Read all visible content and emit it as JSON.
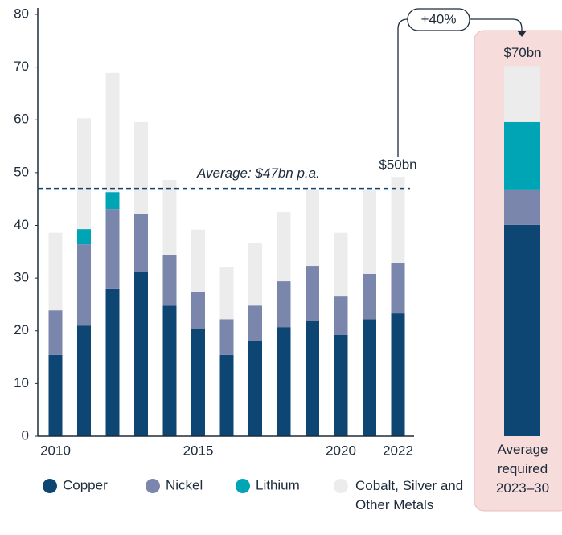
{
  "chart_data": [
    {
      "type": "bar",
      "stacked": true,
      "categories": [
        "2010",
        null,
        null,
        null,
        null,
        "2015",
        null,
        null,
        null,
        null,
        "2020",
        null,
        "2022"
      ],
      "series": [
        {
          "name": "Copper",
          "color": "#0d4673",
          "values": [
            15.4,
            21.0,
            27.9,
            31.2,
            24.8,
            20.3,
            15.4,
            18.0,
            20.7,
            21.8,
            19.2,
            22.2,
            23.3
          ]
        },
        {
          "name": "Nickel",
          "color": "#7b86ad",
          "values": [
            8.5,
            15.4,
            15.2,
            11.0,
            9.5,
            7.1,
            6.8,
            6.8,
            8.7,
            10.5,
            7.3,
            8.6,
            9.5
          ]
        },
        {
          "name": "Lithium",
          "color": "#00a5b5",
          "values": [
            0,
            2.9,
            3.2,
            0,
            0,
            0,
            0,
            0,
            0,
            0,
            0,
            0,
            0
          ]
        },
        {
          "name": "Cobalt, Silver and Other Metals",
          "color": "#ececec",
          "values": [
            14.7,
            21.0,
            22.6,
            17.4,
            14.3,
            11.8,
            9.8,
            11.8,
            13.1,
            14.5,
            12.1,
            16.0,
            16.4
          ]
        }
      ],
      "ylim": [
        0,
        80
      ],
      "yticks": [
        0,
        10,
        20,
        30,
        40,
        50,
        60,
        70,
        80
      ],
      "average_line": {
        "value": 47,
        "label": "Average: $47bn p.a."
      },
      "last_bar_label": "$50bn",
      "legend": "bottom"
    },
    {
      "type": "bar",
      "stacked": true,
      "categories": [
        "Average required 2023–30"
      ],
      "series": [
        {
          "color": "#0d4673",
          "values": [
            40.1
          ]
        },
        {
          "color": "#7b86ad",
          "values": [
            6.7
          ]
        },
        {
          "color": "#00a5b5",
          "values": [
            12.8
          ]
        },
        {
          "color": "#ececec",
          "values": [
            10.6
          ]
        }
      ],
      "ylim": [
        0,
        80
      ],
      "total_label": "$70bn",
      "change_label": "+40%"
    }
  ]
}
